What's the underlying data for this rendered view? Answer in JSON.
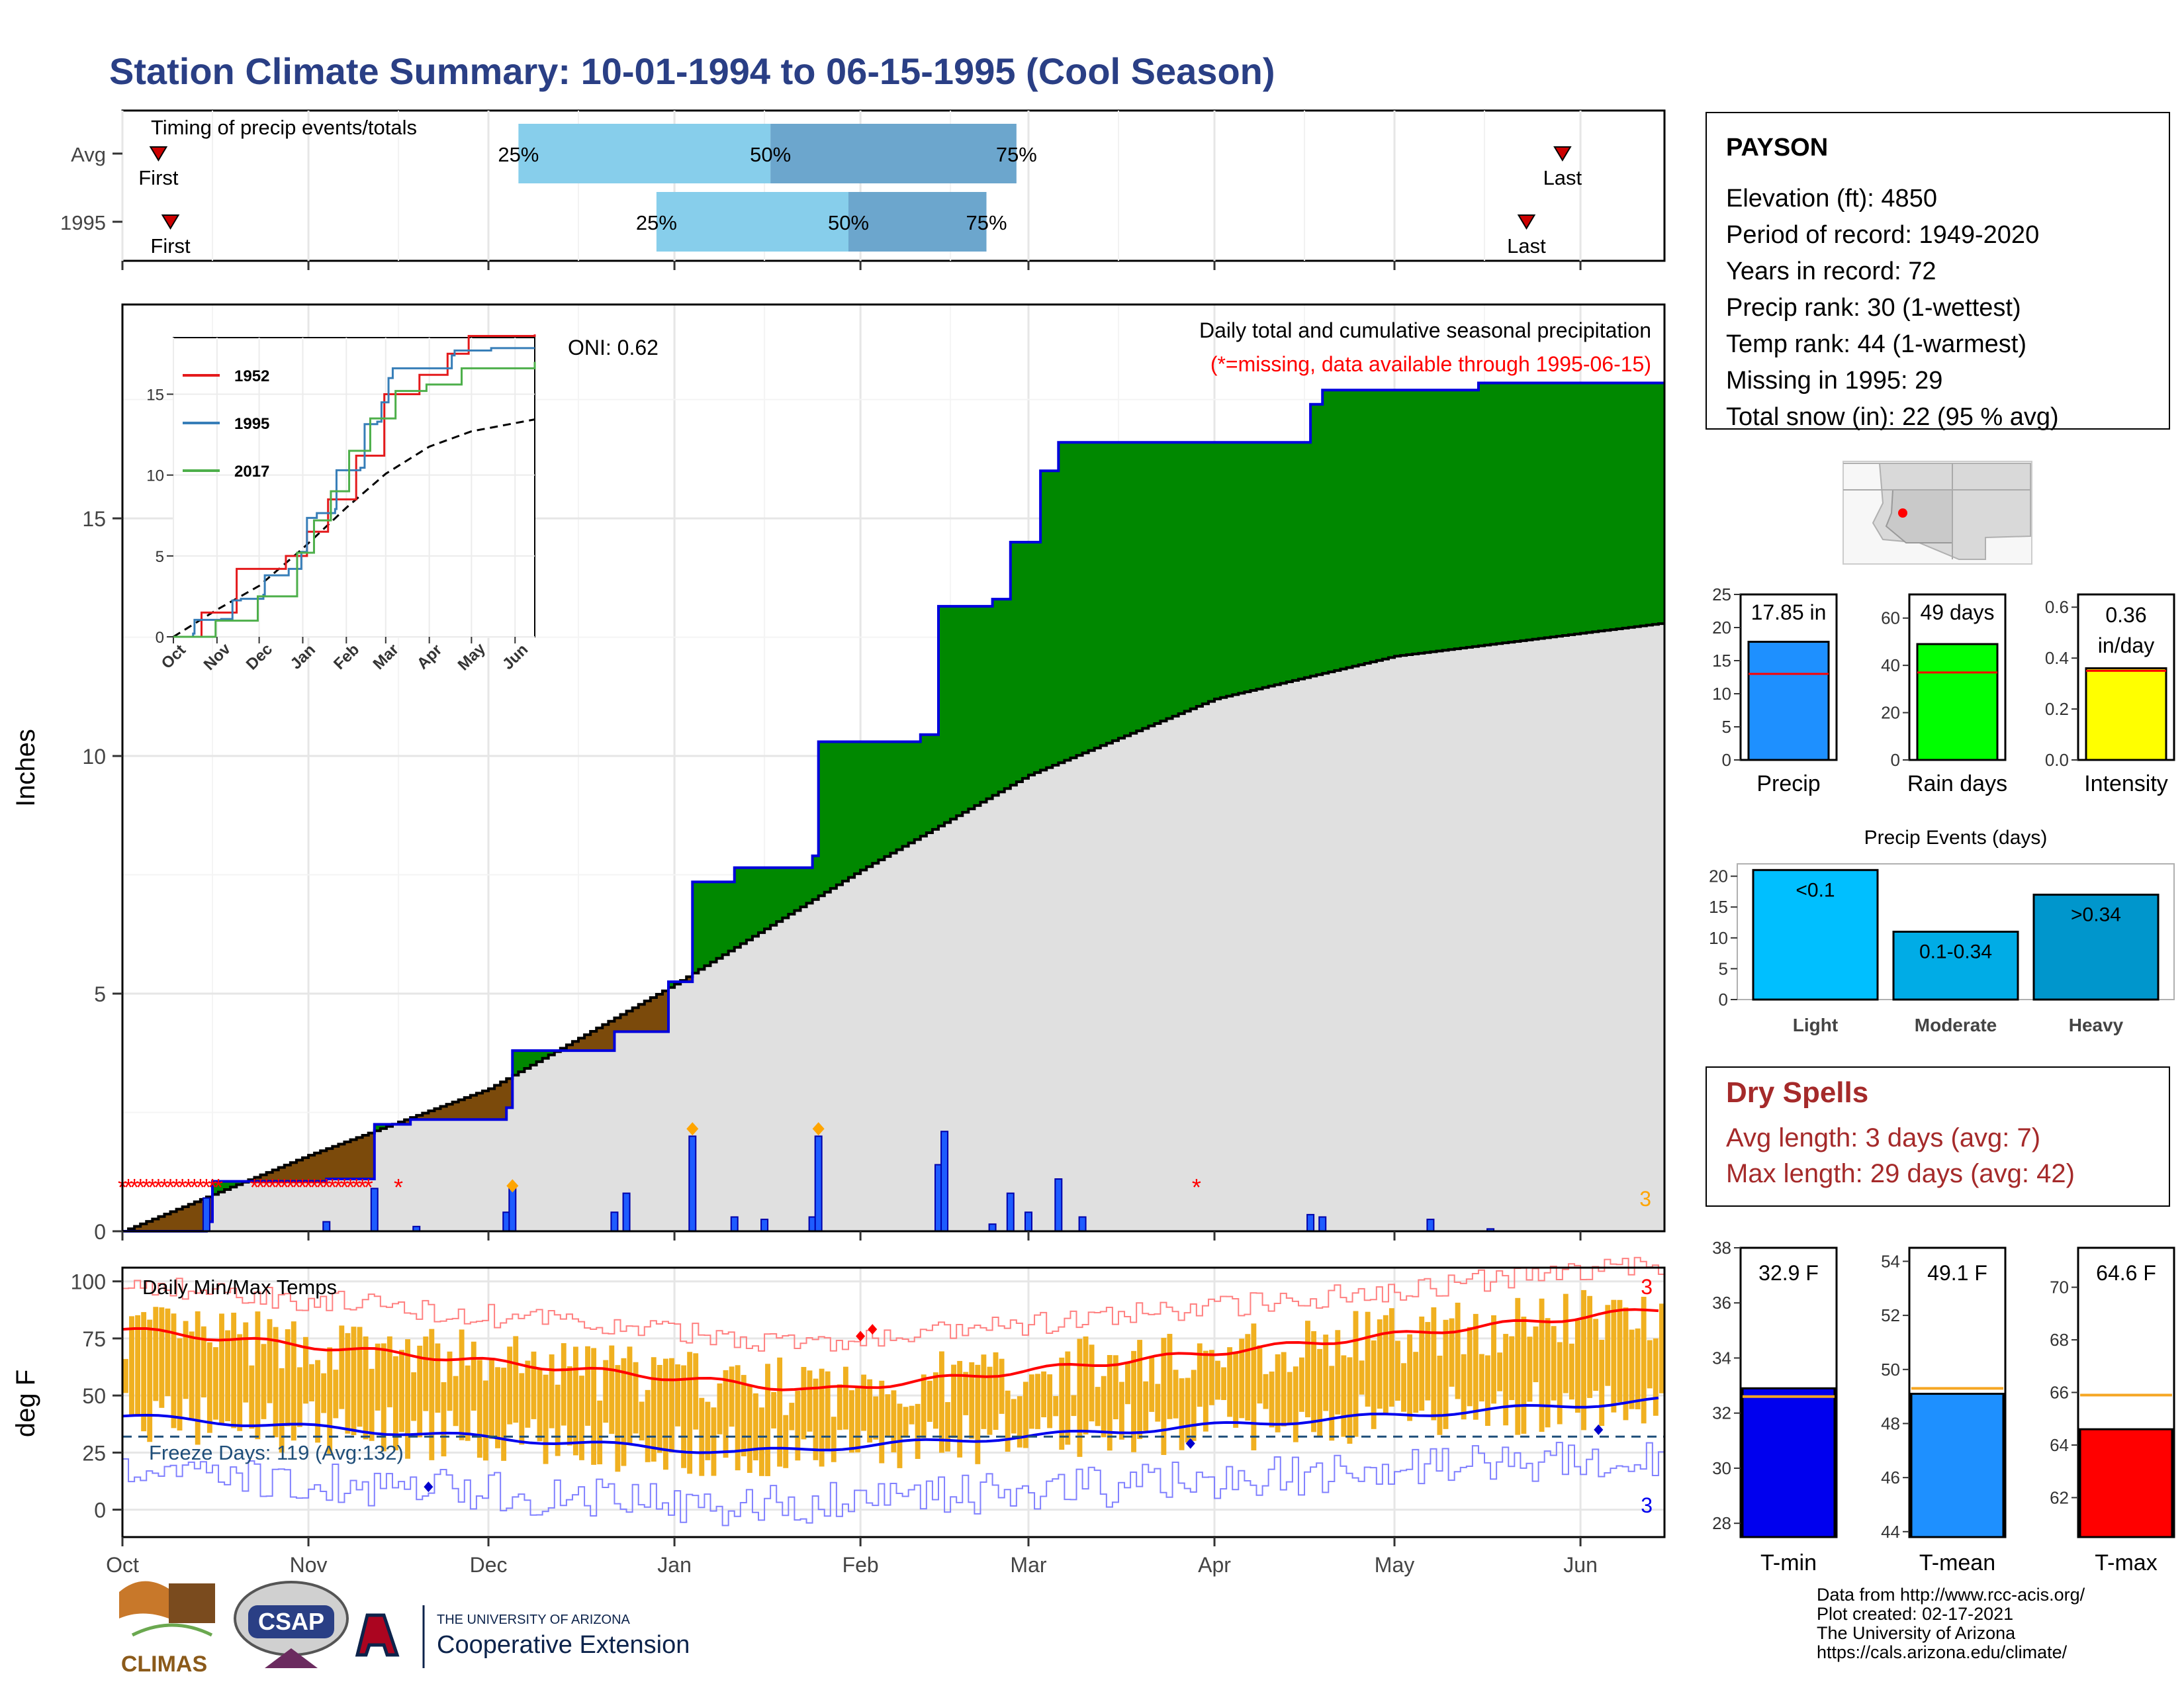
{
  "title": "Station Climate Summary: 10-01-1994 to 06-15-1995 (Cool Season)",
  "months": [
    "Oct",
    "Nov",
    "Dec",
    "Jan",
    "Feb",
    "Mar",
    "Apr",
    "May",
    "Jun"
  ],
  "colors": {
    "title": "#2a3f85",
    "green": "#008800",
    "brown": "#7b4a0b",
    "gray": "#e0e0e0",
    "blue": "#0000ee",
    "red": "#ff0000",
    "orange": "#f0b020",
    "dryspell": "#a52a2a",
    "light": "#00bfff",
    "moderate": "#00ace6",
    "heavy": "#0096cc"
  },
  "timing": {
    "label": "Timing of precip events/totals",
    "rows": [
      {
        "name": "Avg",
        "first": "First",
        "last": "Last",
        "p25": "25%",
        "p50": "50%",
        "p75": "75%",
        "first_day": 6,
        "last_day": 240,
        "p25_day": 66,
        "p50_day": 108,
        "p75_day": 149
      },
      {
        "name": "1995",
        "first": "First",
        "last": "Last",
        "p25": "25%",
        "p50": "50%",
        "p75": "75%",
        "first_day": 8,
        "last_day": 234,
        "p25_day": 89,
        "p50_day": 121,
        "p75_day": 144
      }
    ]
  },
  "main": {
    "ylabel": "Inches",
    "yticks": [
      0,
      5,
      10,
      15
    ],
    "ylim": [
      0,
      19.5
    ],
    "onilabel": "ONI: 0.62",
    "caption1": "Daily total and cumulative seasonal precipitation",
    "caption2": "(*=missing, data available through 1995-06-15)",
    "missing_marker": "*",
    "corner_count": "3"
  },
  "inset": {
    "yticks": [
      0,
      5,
      10,
      15
    ],
    "legend": [
      {
        "name": "1952",
        "color": "#e41a1c"
      },
      {
        "name": "1995",
        "color": "#377eb8"
      },
      {
        "name": "2017",
        "color": "#4daf4a"
      }
    ]
  },
  "temps": {
    "label": "Daily Min/Max Temps",
    "ylabel": "deg F",
    "yticks": [
      0,
      25,
      50,
      75,
      100
    ],
    "ylim": [
      -12,
      106
    ],
    "freeze": "Freeze Days: 119 (Avg:132)",
    "count_top": "3",
    "count_bottom": "3"
  },
  "station": {
    "name": "PAYSON",
    "lines": [
      "Elevation (ft): 4850",
      "Period of record: 1949-2020",
      "Years in record: 72",
      "Precip rank: 30 (1-wettest)",
      "Temp rank: 44 (1-warmest)",
      "Missing in 1995: 29",
      "Total snow (in): 22 (95 % avg)"
    ]
  },
  "summary_bars": [
    {
      "name": "Precip",
      "label1": "17.85 in",
      "label2": "",
      "value": 17.85,
      "avg": 13.0,
      "ylim": [
        0,
        25
      ],
      "ticks": [
        0,
        5,
        10,
        15,
        20,
        25
      ],
      "color": "#1e90ff"
    },
    {
      "name": "Rain days",
      "label1": "49 days",
      "label2": "",
      "value": 49,
      "avg": 37,
      "ylim": [
        0,
        70
      ],
      "ticks": [
        0,
        20,
        40,
        60
      ],
      "color": "#00ff00"
    },
    {
      "name": "Intensity",
      "label1": "0.36",
      "label2": "in/day",
      "value": 0.36,
      "avg": 0.35,
      "ylim": [
        0,
        0.65
      ],
      "ticks": [
        "0.0",
        "0.2",
        "0.4",
        "0.6"
      ],
      "color": "#ffff00"
    }
  ],
  "events": {
    "title": "Precip Events (days)",
    "ticks": [
      0,
      5,
      10,
      15,
      20
    ],
    "bars": [
      {
        "name": "Light",
        "label": "<0.1",
        "value": 21,
        "color": "#00bfff"
      },
      {
        "name": "Moderate",
        "label": "0.1-0.34",
        "value": 11,
        "color": "#00ace6"
      },
      {
        "name": "Heavy",
        "label": ">0.34",
        "value": 17,
        "color": "#0096cc"
      }
    ]
  },
  "dry_spells": {
    "title": "Dry Spells",
    "avg": "Avg length: 3 days (avg: 7)",
    "max": "Max length: 29 days (avg: 42)"
  },
  "temp_bars": [
    {
      "name": "T-min",
      "label": "32.9 F",
      "value": 32.9,
      "avg": 32.6,
      "ylim": [
        27.5,
        38
      ],
      "ticks": [
        28,
        30,
        32,
        34,
        36,
        38
      ],
      "color": "#0000ee"
    },
    {
      "name": "T-mean",
      "label": "49.1 F",
      "value": 49.1,
      "avg": 49.3,
      "ylim": [
        43.8,
        54.5
      ],
      "ticks": [
        44,
        46,
        48,
        50,
        52,
        54
      ],
      "color": "#1e90ff"
    },
    {
      "name": "T-max",
      "label": "64.6 F",
      "value": 64.6,
      "avg": 65.9,
      "ylim": [
        60.5,
        71.5
      ],
      "ticks": [
        62,
        64,
        66,
        68,
        70
      ],
      "color": "#ff0000"
    }
  ],
  "credits": [
    "Data from http://www.rcc-acis.org/",
    "Plot created: 02-17-2021",
    "The University of Arizona",
    "https://cals.arizona.edu/climate/"
  ],
  "logos": {
    "climas": "CLIMAS",
    "csap": "CSAP",
    "ua_line1": "THE UNIVERSITY OF ARIZONA",
    "ua_line2": "Cooperative Extension"
  },
  "chart_data": {
    "type": "area",
    "title": "Daily total and cumulative seasonal precipitation",
    "ylabel": "Inches",
    "x_start": "1994-10-01",
    "x_end": "1995-06-15",
    "cumulative_1995": [
      {
        "date": "1994-10-01",
        "value": 0.0
      },
      {
        "date": "1994-10-15",
        "value": 0.2
      },
      {
        "date": "1994-10-16",
        "value": 1.05
      },
      {
        "date": "1994-11-04",
        "value": 1.1
      },
      {
        "date": "1994-11-12",
        "value": 2.25
      },
      {
        "date": "1994-11-18",
        "value": 2.35
      },
      {
        "date": "1994-12-04",
        "value": 2.6
      },
      {
        "date": "1994-12-05",
        "value": 3.8
      },
      {
        "date": "1994-12-22",
        "value": 4.2
      },
      {
        "date": "1994-12-31",
        "value": 5.25
      },
      {
        "date": "1995-01-04",
        "value": 7.35
      },
      {
        "date": "1995-01-11",
        "value": 7.65
      },
      {
        "date": "1995-01-24",
        "value": 7.9
      },
      {
        "date": "1995-01-25",
        "value": 10.3
      },
      {
        "date": "1995-02-11",
        "value": 10.45
      },
      {
        "date": "1995-02-14",
        "value": 13.15
      },
      {
        "date": "1995-02-23",
        "value": 13.3
      },
      {
        "date": "1995-02-26",
        "value": 14.5
      },
      {
        "date": "1995-03-03",
        "value": 16.0
      },
      {
        "date": "1995-03-06",
        "value": 16.6
      },
      {
        "date": "1995-04-17",
        "value": 17.4
      },
      {
        "date": "1995-04-19",
        "value": 17.7
      },
      {
        "date": "1995-05-15",
        "value": 17.85
      },
      {
        "date": "1995-06-15",
        "value": 17.85
      }
    ],
    "cumulative_average": [
      {
        "date": "1994-10-01",
        "value": 0.0
      },
      {
        "date": "1994-11-01",
        "value": 1.6
      },
      {
        "date": "1994-12-01",
        "value": 3.0
      },
      {
        "date": "1995-01-01",
        "value": 5.2
      },
      {
        "date": "1995-02-01",
        "value": 7.6
      },
      {
        "date": "1995-03-01",
        "value": 9.6
      },
      {
        "date": "1995-04-01",
        "value": 11.2
      },
      {
        "date": "1995-05-01",
        "value": 12.1
      },
      {
        "date": "1995-06-15",
        "value": 12.8
      }
    ],
    "daily_precip": [
      {
        "date": "1994-10-15",
        "value": 0.7
      },
      {
        "date": "1994-11-04",
        "value": 0.2
      },
      {
        "date": "1994-11-12",
        "value": 0.9
      },
      {
        "date": "1994-11-19",
        "value": 0.1
      },
      {
        "date": "1994-12-04",
        "value": 0.4
      },
      {
        "date": "1994-12-05",
        "value": 0.9
      },
      {
        "date": "1994-12-22",
        "value": 0.4
      },
      {
        "date": "1994-12-24",
        "value": 0.8
      },
      {
        "date": "1995-01-04",
        "value": 2.0
      },
      {
        "date": "1995-01-11",
        "value": 0.3
      },
      {
        "date": "1995-01-16",
        "value": 0.25
      },
      {
        "date": "1995-01-24",
        "value": 0.3
      },
      {
        "date": "1995-01-25",
        "value": 2.0
      },
      {
        "date": "1995-02-14",
        "value": 1.4
      },
      {
        "date": "1995-02-15",
        "value": 2.1
      },
      {
        "date": "1995-02-23",
        "value": 0.15
      },
      {
        "date": "1995-02-26",
        "value": 0.8
      },
      {
        "date": "1995-03-01",
        "value": 0.4
      },
      {
        "date": "1995-03-06",
        "value": 1.1
      },
      {
        "date": "1995-03-10",
        "value": 0.3
      },
      {
        "date": "1995-04-17",
        "value": 0.35
      },
      {
        "date": "1995-04-19",
        "value": 0.3
      },
      {
        "date": "1995-05-07",
        "value": 0.25
      },
      {
        "date": "1995-05-17",
        "value": 0.05
      }
    ],
    "temps_normal": {
      "max_start": 79,
      "max_mid": 52,
      "max_end": 88,
      "min_start": 41,
      "min_mid": 25,
      "min_end": 48
    },
    "freeze_line": 32
  }
}
